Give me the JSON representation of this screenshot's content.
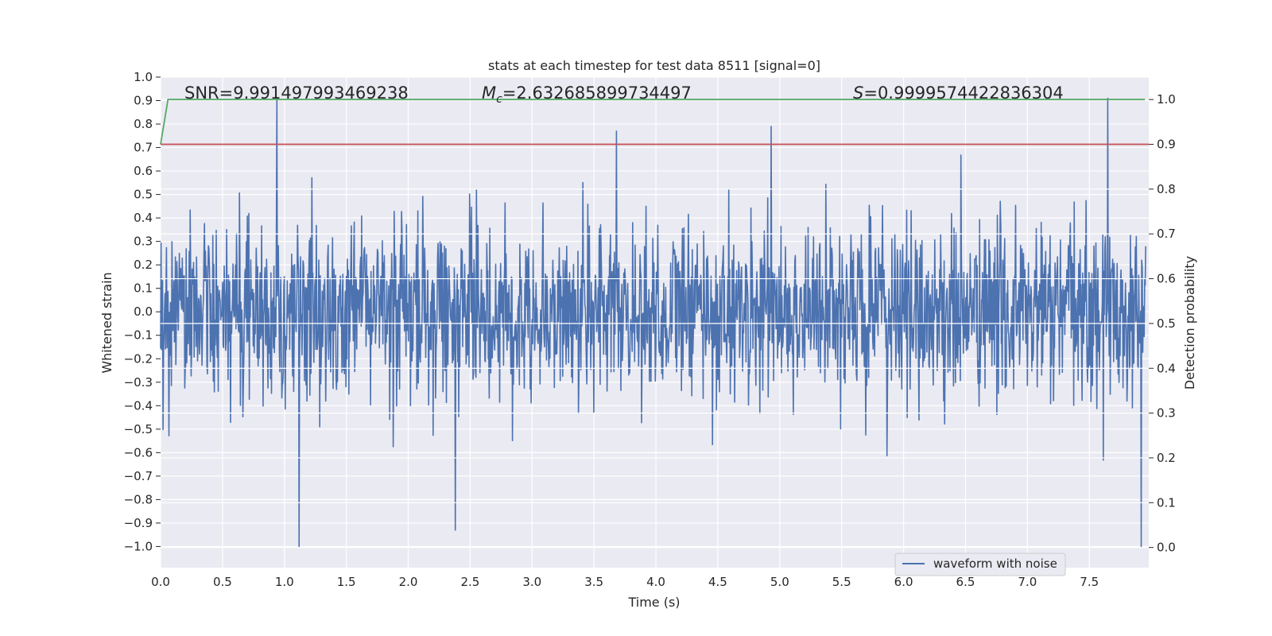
{
  "chart_data": {
    "type": "line",
    "title": "stats at each timestep for test data 8511 [signal=0]",
    "xlabel": "Time (s)",
    "ylabel": "Whitened strain",
    "y2label": "Detection probability",
    "xlim": [
      0.0,
      7.98
    ],
    "ylim": [
      -1.09,
      1.0
    ],
    "y2lim": [
      -0.045,
      1.05
    ],
    "xticks": [
      "0.0",
      "0.5",
      "1.0",
      "1.5",
      "2.0",
      "2.5",
      "3.0",
      "3.5",
      "4.0",
      "4.5",
      "5.0",
      "5.5",
      "6.0",
      "6.5",
      "7.0",
      "7.5"
    ],
    "yticks": [
      "1.0",
      "0.9",
      "0.8",
      "0.7",
      "0.6",
      "0.5",
      "0.4",
      "0.3",
      "0.2",
      "0.1",
      "0.0",
      "−0.1",
      "−0.2",
      "−0.3",
      "−0.4",
      "−0.5",
      "−0.6",
      "−0.7",
      "−0.8",
      "−0.9",
      "−1.0"
    ],
    "y2ticks": [
      "1.0",
      "0.9",
      "0.8",
      "0.7",
      "0.6",
      "0.5",
      "0.4",
      "0.3",
      "0.2",
      "0.1",
      "0.0"
    ],
    "grid": true,
    "legend_placement": "lower-right",
    "annotations": {
      "snr": "SNR=9.991497993469238",
      "mc_symbol": "M",
      "mc_sub": "c",
      "mc_value": "=2.632685899734497",
      "s_symbol": "S",
      "s_value": "=0.9999574422836304"
    },
    "series": [
      {
        "name": "waveform with noise",
        "axis": "left",
        "color": "#4c72b0",
        "kind": "noise",
        "sample_count": 2000,
        "typical_envelope": [
          -0.45,
          0.45
        ],
        "peaks": [
          {
            "x": 0.94,
            "y": 0.91
          },
          {
            "x": 1.12,
            "y": -1.0
          },
          {
            "x": 2.38,
            "y": -0.93
          },
          {
            "x": 3.68,
            "y": 0.77
          },
          {
            "x": 4.93,
            "y": 0.79
          },
          {
            "x": 7.65,
            "y": 0.91
          },
          {
            "x": 7.92,
            "y": -1.0
          }
        ]
      },
      {
        "name": "detection probability",
        "axis": "right",
        "color": "#55a868",
        "x": [
          0.0,
          0.06,
          7.95
        ],
        "y": [
          0.9,
          1.0,
          1.0
        ]
      },
      {
        "name": "threshold",
        "axis": "right",
        "color": "#c44e52",
        "x": [
          0.0,
          7.98
        ],
        "y": [
          0.9,
          0.9
        ]
      }
    ]
  }
}
